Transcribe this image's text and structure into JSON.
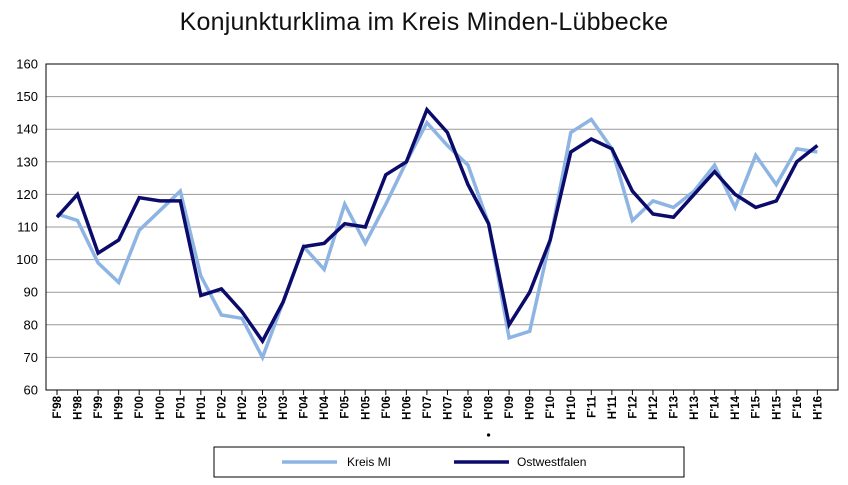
{
  "chart_data": {
    "type": "line",
    "title": "Konjunkturklima im Kreis Minden-Lübbecke",
    "xlabel": "",
    "ylabel": "",
    "ylim": [
      60,
      160
    ],
    "yticks": [
      60,
      70,
      80,
      90,
      100,
      110,
      120,
      130,
      140,
      150,
      160
    ],
    "grid": true,
    "legend": "bottom",
    "categories": [
      "F'98",
      "H'98",
      "F'99",
      "H'99",
      "F'00",
      "H'00",
      "F'01",
      "H'01",
      "F'02",
      "H'02",
      "F'03",
      "H'03",
      "F'04",
      "H'04",
      "F'05",
      "H'05",
      "F'06",
      "H'06",
      "F'07",
      "H'07",
      "F'08",
      "H'08",
      "F'09",
      "H'09",
      "F'10",
      "H'10",
      "F'11",
      "H'11",
      "F'12",
      "H'12",
      "F'13",
      "H'13",
      "F'14",
      "H'14",
      "F'15",
      "H'15",
      "F'16",
      "H'16"
    ],
    "marked_category": "H'08",
    "series": [
      {
        "name": "Kreis MI",
        "color": "#8eb4e3",
        "values": [
          114,
          112,
          99,
          93,
          109,
          115,
          121,
          95,
          83,
          82,
          70,
          87,
          104,
          97,
          117,
          105,
          117,
          130,
          142,
          135,
          129,
          111,
          76,
          78,
          106,
          139,
          143,
          134,
          112,
          118,
          116,
          121,
          129,
          116,
          132,
          123,
          134,
          133
        ]
      },
      {
        "name": "Ostwestfalen",
        "color": "#0b0b6b",
        "values": [
          113,
          120,
          102,
          106,
          119,
          118,
          118,
          89,
          91,
          84,
          75,
          87,
          104,
          105,
          111,
          110,
          126,
          130,
          146,
          139,
          123,
          111,
          80,
          90,
          106,
          133,
          137,
          134,
          121,
          114,
          113,
          120,
          127,
          120,
          116,
          118,
          130,
          135
        ]
      }
    ]
  }
}
